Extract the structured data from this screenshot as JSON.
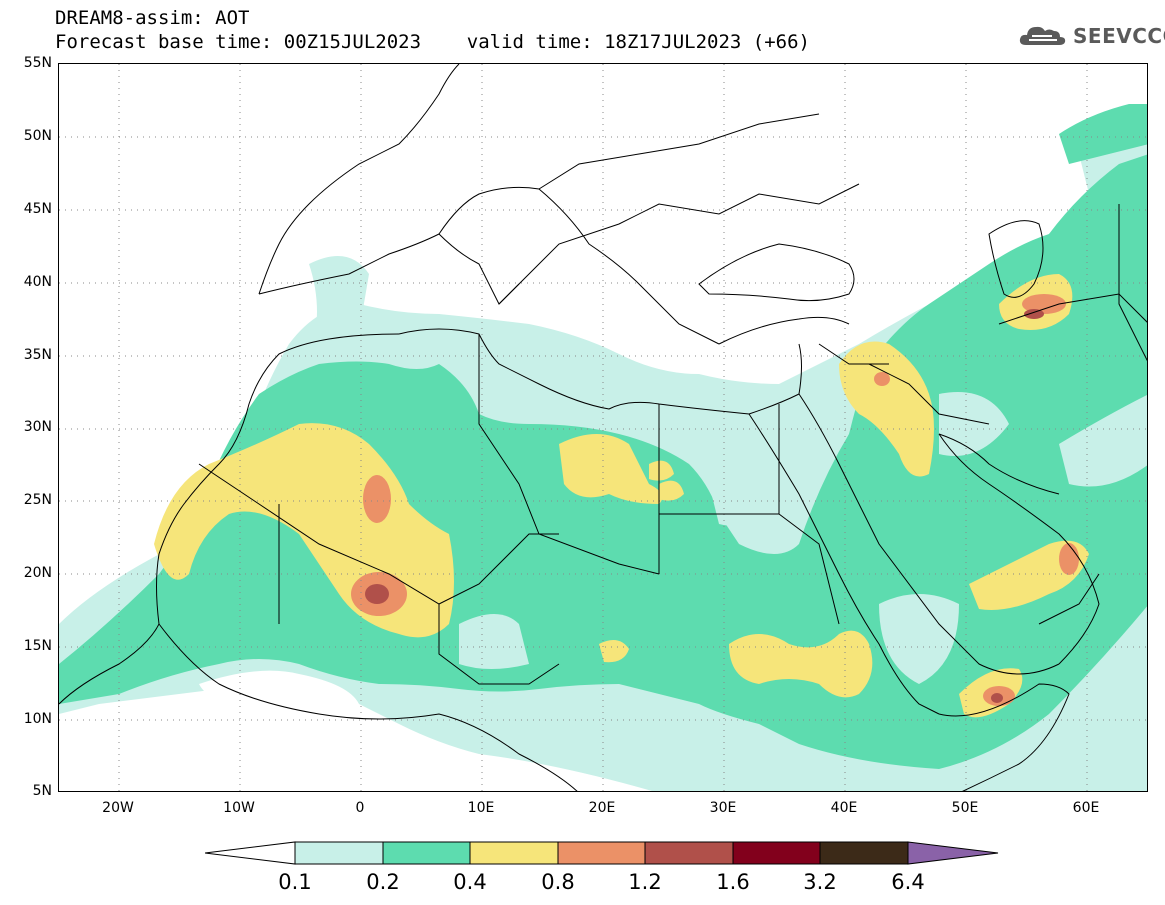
{
  "header": {
    "title_line1": "DREAM8-assim: AOT",
    "title_line2": "Forecast base time: 00Z15JUL2023    valid time: 18Z17JUL2023 (+66)"
  },
  "logo": {
    "text": "SEEVCCC",
    "icon": "cloud-icon"
  },
  "map": {
    "lat_ticks": [
      "55N",
      "50N",
      "45N",
      "40N",
      "35N",
      "30N",
      "25N",
      "20N",
      "15N",
      "10N",
      "5N"
    ],
    "lon_ticks": [
      "20W",
      "10W",
      "0",
      "10E",
      "20E",
      "30E",
      "40E",
      "50E",
      "60E"
    ],
    "lon_range": [
      -25,
      65
    ],
    "lat_range": [
      5,
      55
    ]
  },
  "legend": {
    "levels": [
      "0.1",
      "0.2",
      "0.4",
      "0.8",
      "1.2",
      "1.6",
      "3.2",
      "6.4"
    ],
    "colors": [
      "#ffffff",
      "#c8f0e8",
      "#5ddcaf",
      "#f6e57a",
      "#eb9167",
      "#b0504a",
      "#82001c",
      "#3c2a18",
      "#8a62a8"
    ]
  }
}
